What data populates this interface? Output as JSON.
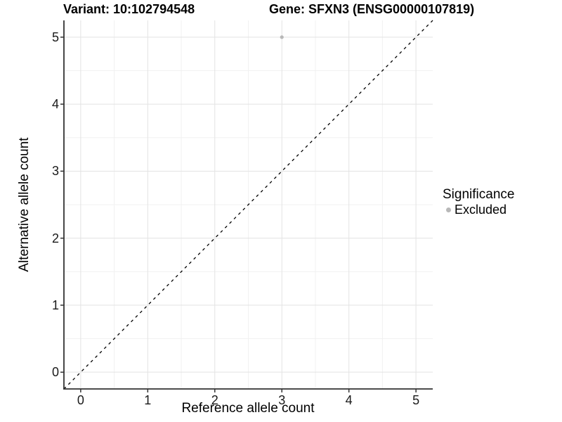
{
  "header": {
    "variant_title": "Variant: 10:102794548",
    "gene_title": "Gene: SFXN3 (ENSG00000107819)"
  },
  "axes": {
    "x": {
      "label": "Reference allele count"
    },
    "y": {
      "label": "Alternative allele count"
    }
  },
  "legend": {
    "title": "Significance",
    "items": [
      {
        "label": "Excluded",
        "marker_color": "#b8b8b8"
      }
    ]
  },
  "chart_data": {
    "type": "scatter",
    "title": "Variant: 10:102794548 | Gene: SFXN3 (ENSG00000107819)",
    "xlabel": "Reference allele count",
    "ylabel": "Alternative allele count",
    "xlim": [
      -0.25,
      5.25
    ],
    "ylim": [
      -0.25,
      5.25
    ],
    "x_ticks": [
      0,
      1,
      2,
      3,
      4,
      5
    ],
    "y_ticks": [
      0,
      1,
      2,
      3,
      4,
      5
    ],
    "x_minor_ticks": [
      0.5,
      1.5,
      2.5,
      3.5,
      4.5
    ],
    "y_minor_ticks": [
      0.5,
      1.5,
      2.5,
      3.5,
      4.5
    ],
    "grid": "major+minor",
    "legend_position": "right",
    "series": [
      {
        "name": "Excluded",
        "marker_color": "#b8b8b8",
        "points": [
          {
            "x": 3,
            "y": 5
          }
        ]
      }
    ],
    "reference_line": {
      "type": "identity",
      "from": [
        -0.25,
        -0.25
      ],
      "to": [
        5.25,
        5.25
      ],
      "style": "dashed",
      "color": "#000000"
    }
  },
  "colors": {
    "background": "#ffffff",
    "grid_major": "#e3e3e3",
    "grid_minor": "#f1f1f1",
    "axis_line": "#333333",
    "tick_mark": "#333333",
    "point": "#b8b8b8"
  }
}
